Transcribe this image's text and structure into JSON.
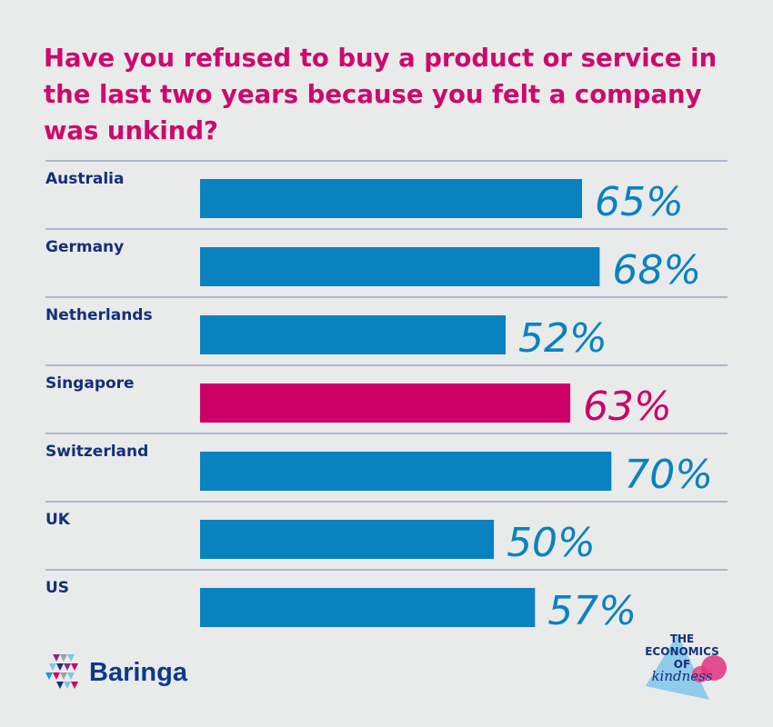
{
  "chart_data": {
    "type": "bar",
    "orientation": "horizontal",
    "title": "Have you refused to buy a product or service in the last two years because you felt a company was unkind?",
    "categories": [
      "Australia",
      "Germany",
      "Netherlands",
      "Singapore",
      "Switzerland",
      "UK",
      "US"
    ],
    "values": [
      65,
      68,
      52,
      63,
      70,
      50,
      57
    ],
    "value_labels": [
      "65%",
      "68%",
      "52%",
      "63%",
      "70%",
      "50%",
      "57%"
    ],
    "highlight": "Singapore",
    "xlim": [
      0,
      100
    ],
    "grid": false,
    "colors": {
      "bar": "#0a82bf",
      "highlight": "#cc0066",
      "title": "#cc0a6c",
      "label": "#13307a",
      "separator": "#9aa6c6",
      "background": "#e9eaea"
    }
  },
  "footer": {
    "brand": "Baringa",
    "campaign_logo": [
      "THE",
      "ECONOMICS",
      "OF",
      "kindness"
    ]
  }
}
